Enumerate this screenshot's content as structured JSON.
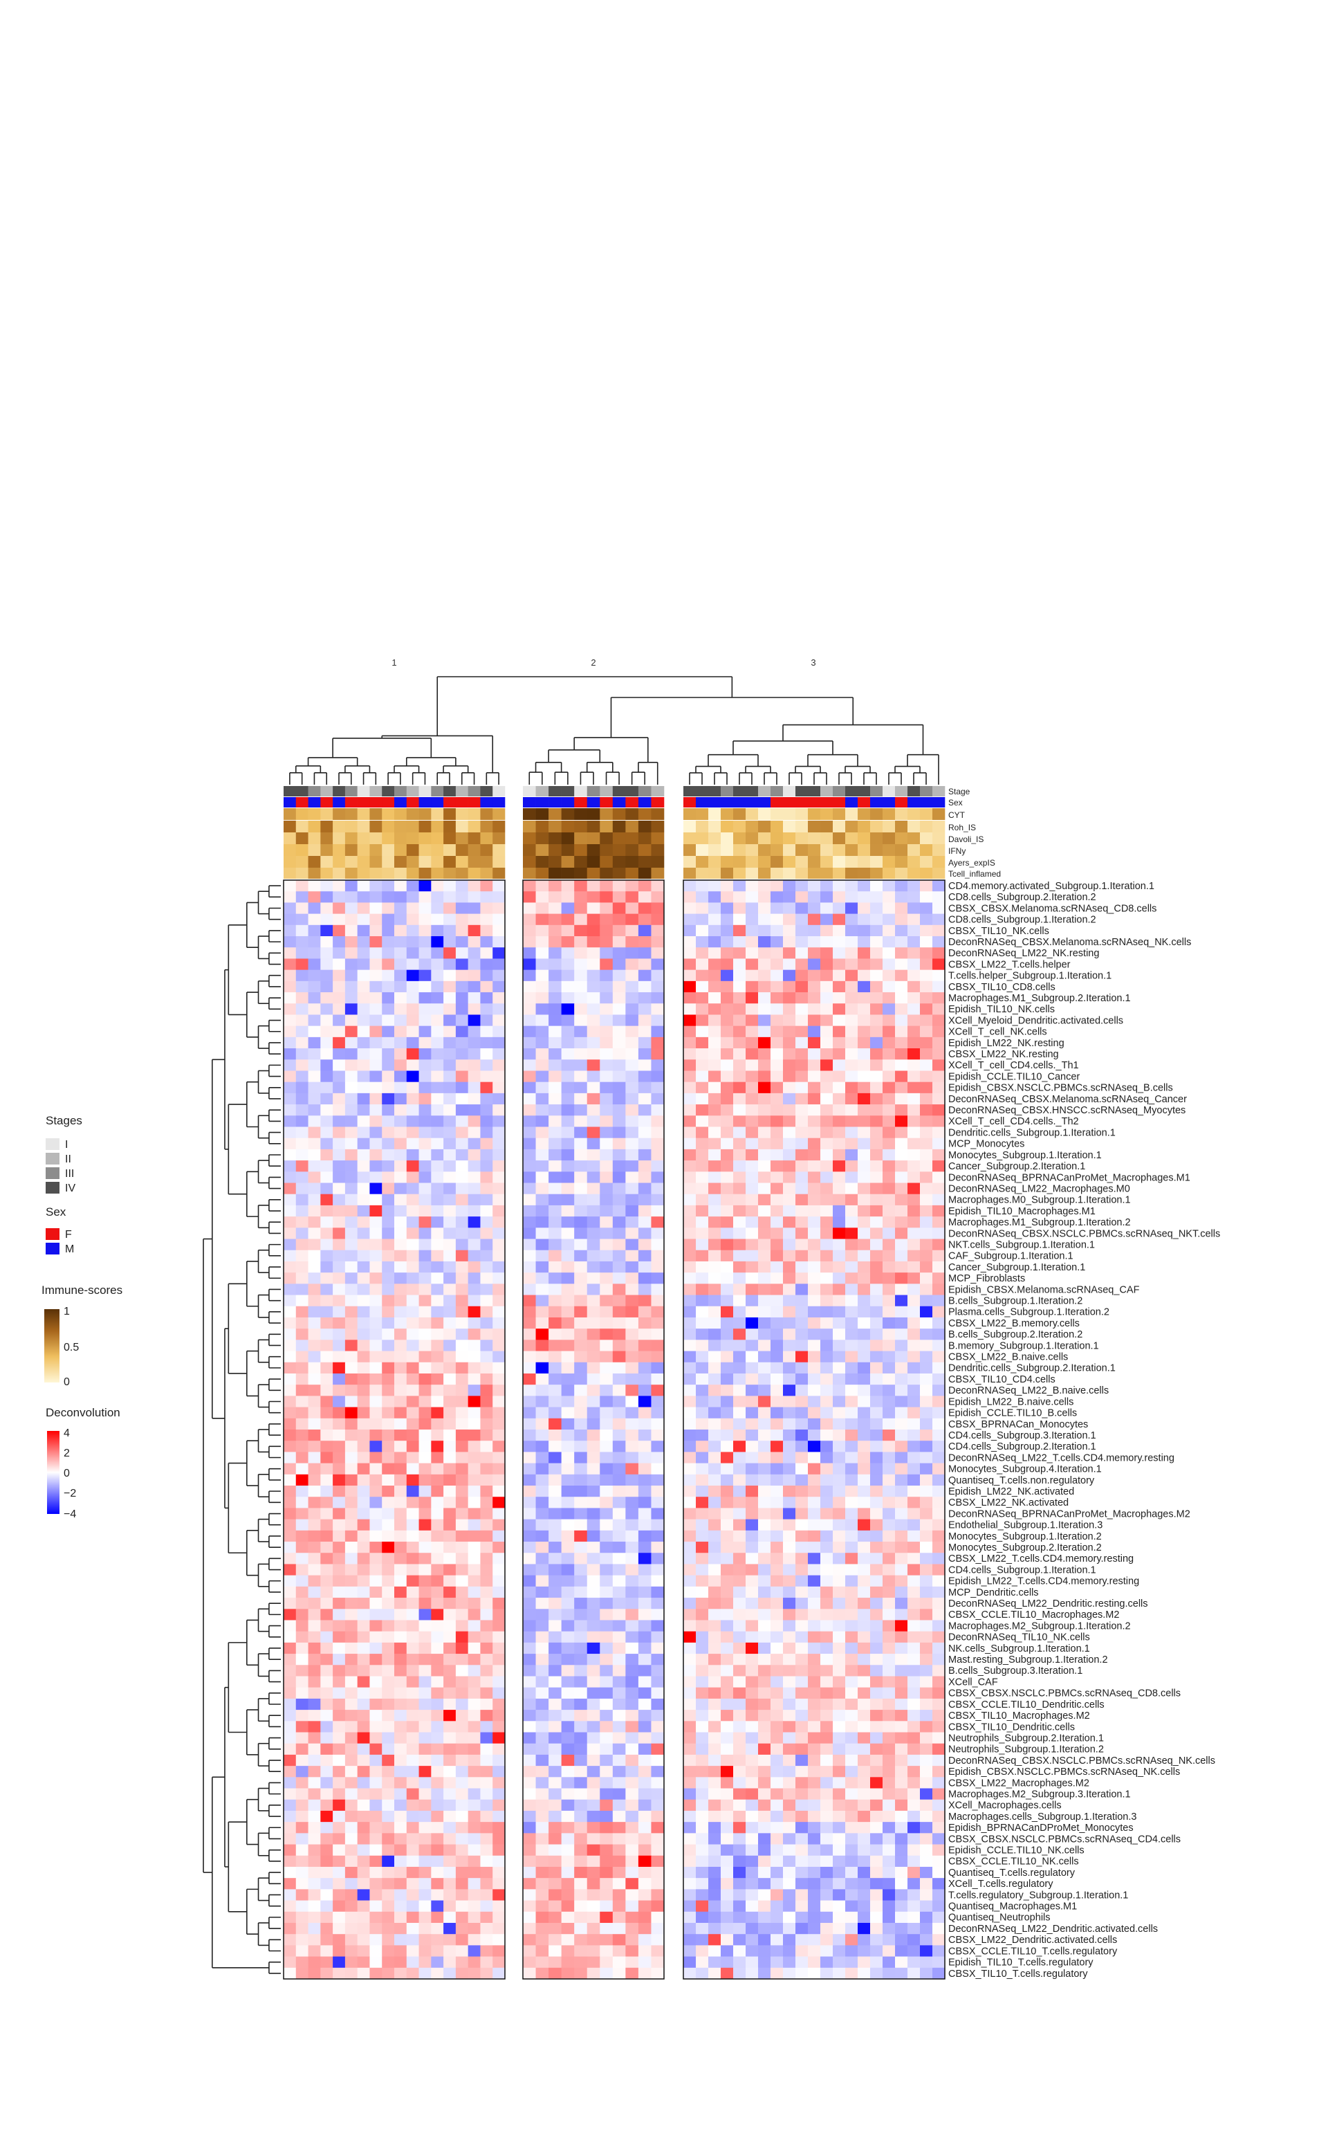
{
  "chart_data": {
    "type": "heatmap",
    "title": "",
    "clusters": [
      "1",
      "2",
      "3"
    ],
    "column_counts": [
      18,
      11,
      21
    ],
    "color_scale": {
      "low": "#0000ff",
      "mid": "#ffffff",
      "high": "#ff0000",
      "range": [
        -4,
        4
      ]
    },
    "annotation_scale": {
      "low": "#fff6d6",
      "high": "#5a3107",
      "range": [
        0,
        1
      ]
    },
    "annotation_rows": [
      "Stage",
      "Sex",
      "CYT",
      "Roh_IS",
      "Davoli_IS",
      "IFNy",
      "Ayers_expIS",
      "Tcell_inflamed"
    ],
    "stage_pattern": [
      3,
      3,
      2,
      1,
      3,
      2,
      0,
      1,
      3,
      2,
      1,
      0,
      2,
      3,
      1,
      2,
      3,
      0,
      0,
      1,
      3,
      3,
      0,
      2,
      1,
      3,
      3,
      2,
      1,
      3,
      3,
      3,
      2,
      3,
      3,
      1,
      2,
      0,
      3,
      3,
      1,
      2,
      3,
      3,
      2,
      0,
      1,
      3,
      2,
      1
    ],
    "sex_pattern": [
      1,
      0,
      1,
      0,
      1,
      0,
      0,
      0,
      0,
      1,
      0,
      1,
      1,
      0,
      0,
      0,
      1,
      1,
      1,
      1,
      1,
      1,
      0,
      1,
      0,
      1,
      0,
      1,
      0,
      0,
      1,
      1,
      1,
      1,
      1,
      1,
      0,
      0,
      0,
      0,
      0,
      0,
      1,
      0,
      1,
      1,
      0,
      1,
      1,
      1
    ],
    "rows": [
      "CD4.memory.activated_Subgroup.1.Iteration.1",
      "CD8.cells_Subgroup.2.Iteration.2",
      "CBSX_CBSX.Melanoma.scRNAseq_CD8.cells",
      "CD8.cells_Subgroup.1.Iteration.2",
      "CBSX_TIL10_NK.cells",
      "DeconRNASeq_CBSX.Melanoma.scRNAseq_NK.cells",
      "DeconRNASeq_LM22_NK.resting",
      "CBSX_LM22_T.cells.helper",
      "T.cells.helper_Subgroup.1.Iteration.1",
      "CBSX_TIL10_CD8.cells",
      "Macrophages.M1_Subgroup.2.Iteration.1",
      "Epidish_TIL10_NK.cells",
      "XCell_Myeloid_Dendritic.activated.cells",
      "XCell_T_cell_NK.cells",
      "Epidish_LM22_NK.resting",
      "CBSX_LM22_NK.resting",
      "XCell_T_cell_CD4.cells._Th1",
      "Epidish_CCLE.TIL10_Cancer",
      "Epidish_CBSX.NSCLC.PBMCs.scRNAseq_B.cells",
      "DeconRNASeq_CBSX.Melanoma.scRNAseq_Cancer",
      "DeconRNASeq_CBSX.HNSCC.scRNAseq_Myocytes",
      "XCell_T_cell_CD4.cells._Th2",
      "Dendritic.cells_Subgroup.1.Iteration.1",
      "MCP_Monocytes",
      "Monocytes_Subgroup.1.Iteration.1",
      "Cancer_Subgroup.2.Iteration.1",
      "DeconRNASeq_BPRNACanProMet_Macrophages.M1",
      "DeconRNASeq_LM22_Macrophages.M0",
      "Macrophages.M0_Subgroup.1.Iteration.1",
      "Epidish_TIL10_Macrophages.M1",
      "Macrophages.M1_Subgroup.1.Iteration.2",
      "DeconRNASeq_CBSX.NSCLC.PBMCs.scRNAseq_NKT.cells",
      "NKT.cells_Subgroup.1.Iteration.1",
      "CAF_Subgroup.1.Iteration.1",
      "Cancer_Subgroup.1.Iteration.1",
      "MCP_Fibroblasts",
      "Epidish_CBSX.Melanoma.scRNAseq_CAF",
      "B.cells_Subgroup.1.Iteration.2",
      "Plasma.cells_Subgroup.1.Iteration.2",
      "CBSX_LM22_B.memory.cells",
      "B.cells_Subgroup.2.Iteration.2",
      "B.memory_Subgroup.1.Iteration.1",
      "CBSX_LM22_B.naive.cells",
      "Dendritic.cells_Subgroup.2.Iteration.1",
      "CBSX_TIL10_CD4.cells",
      "DeconRNASeq_LM22_B.naive.cells",
      "Epidish_LM22_B.naive.cells",
      "Epidish_CCLE.TIL10_B.cells",
      "CBSX_BPRNACan_Monocytes",
      "CD4.cells_Subgroup.3.Iteration.1",
      "CD4.cells_Subgroup.2.Iteration.1",
      "DeconRNASeq_LM22_T.cells.CD4.memory.resting",
      "Monocytes_Subgroup.4.Iteration.1",
      "Quantiseq_T.cells.non.regulatory",
      "Epidish_LM22_NK.activated",
      "CBSX_LM22_NK.activated",
      "DeconRNASeq_BPRNACanProMet_Macrophages.M2",
      "Endothelial_Subgroup.1.Iteration.3",
      "Monocytes_Subgroup.1.Iteration.2",
      "Monocytes_Subgroup.2.Iteration.2",
      "CBSX_LM22_T.cells.CD4.memory.resting",
      "CD4.cells_Subgroup.1.Iteration.1",
      "Epidish_LM22_T.cells.CD4.memory.resting",
      "MCP_Dendritic.cells",
      "DeconRNASeq_LM22_Dendritic.resting.cells",
      "CBSX_CCLE.TIL10_Macrophages.M2",
      "Macrophages.M2_Subgroup.1.Iteration.2",
      "DeconRNASeq_TIL10_NK.cells",
      "NK.cells_Subgroup.1.Iteration.1",
      "Mast.resting_Subgroup.1.Iteration.2",
      "B.cells_Subgroup.3.Iteration.1",
      "XCell_CAF",
      "CBSX_CBSX.NSCLC.PBMCs.scRNAseq_CD8.cells",
      "CBSX_CCLE.TIL10_Dendritic.cells",
      "CBSX_TIL10_Macrophages.M2",
      "CBSX_TIL10_Dendritic.cells",
      "Neutrophils_Subgroup.2.Iteration.1",
      "Neutrophils_Subgroup.1.Iteration.2",
      "DeconRNASeq_CBSX.NSCLC.PBMCs.scRNAseq_NK.cells",
      "Epidish_CBSX.NSCLC.PBMCs.scRNAseq_NK.cells",
      "CBSX_LM22_Macrophages.M2",
      "Macrophages.M2_Subgroup.3.Iteration.1",
      "XCell_Macrophages.cells",
      "Macrophages.cells_Subgroup.1.Iteration.3",
      "Epidish_BPRNACanDProMet_Monocytes",
      "CBSX_CBSX.NSCLC.PBMCs.scRNAseq_CD4.cells",
      "Epidish_CCLE.TIL10_NK.cells",
      "CBSX_CCLE.TIL10_NK.cells",
      "Quantiseq_T.cells.regulatory",
      "XCell_T.cells.regulatory",
      "T.cells.regulatory_Subgroup.1.Iteration.1",
      "Quantiseq_Macrophages.M1",
      "Quantiseq_Neutrophils",
      "DeconRNASeq_LM22_Dendritic.activated.cells",
      "CBSX_LM22_Dendritic.activated.cells",
      "CBSX_CCLE.TIL10_T.cells.regulatory",
      "Epidish_TIL10_T.cells.regulatory",
      "CBSX_TIL10_T.cells.regulatory"
    ]
  },
  "legend": {
    "stages": {
      "title": "Stages",
      "items": [
        {
          "label": "I",
          "color": "#e6e6e6"
        },
        {
          "label": "II",
          "color": "#b8b8b8"
        },
        {
          "label": "III",
          "color": "#8c8c8c"
        },
        {
          "label": "IV",
          "color": "#505050"
        }
      ]
    },
    "sex": {
      "title": "Sex",
      "items": [
        {
          "label": "F",
          "color": "#ee1111"
        },
        {
          "label": "M",
          "color": "#1111ee"
        }
      ]
    },
    "immune": {
      "title": "Immune-scores",
      "ticks": [
        "1",
        "0.5",
        "0"
      ]
    },
    "deconv": {
      "title": "Deconvolution",
      "ticks": [
        "4",
        "2",
        "0",
        "−2",
        "−4"
      ]
    }
  }
}
